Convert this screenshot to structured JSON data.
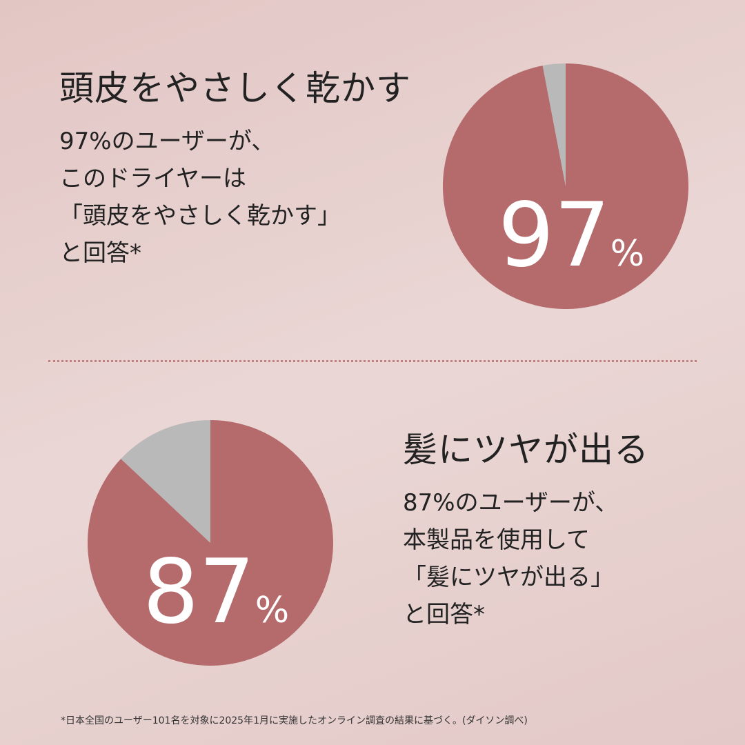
{
  "colors": {
    "agree": "#b56a6c",
    "other": "#bab9b9",
    "label": "#ffffff",
    "divider": "#c07f81"
  },
  "section1": {
    "title": "頭皮をやさしく乾かす",
    "lines": [
      "97%のユーザーが、",
      "このドライヤーは",
      "「頭皮をやさしく乾かす」",
      "と回答*"
    ]
  },
  "section2": {
    "title": "髪にツヤが出る",
    "lines": [
      "87%のユーザーが、",
      "本製品を使用して",
      "「髪にツヤが出る」",
      "と回答*"
    ]
  },
  "footnote": "*日本全国のユーザー101名を対象に2025年1月に実施したオンライン調査の結果に基づく。(ダイソン調べ)",
  "chart_data": [
    {
      "type": "pie",
      "values": [
        97,
        3
      ],
      "label_number": "97",
      "label_unit": "%"
    },
    {
      "type": "pie",
      "values": [
        87,
        13
      ],
      "label_number": "87",
      "label_unit": "%"
    }
  ]
}
